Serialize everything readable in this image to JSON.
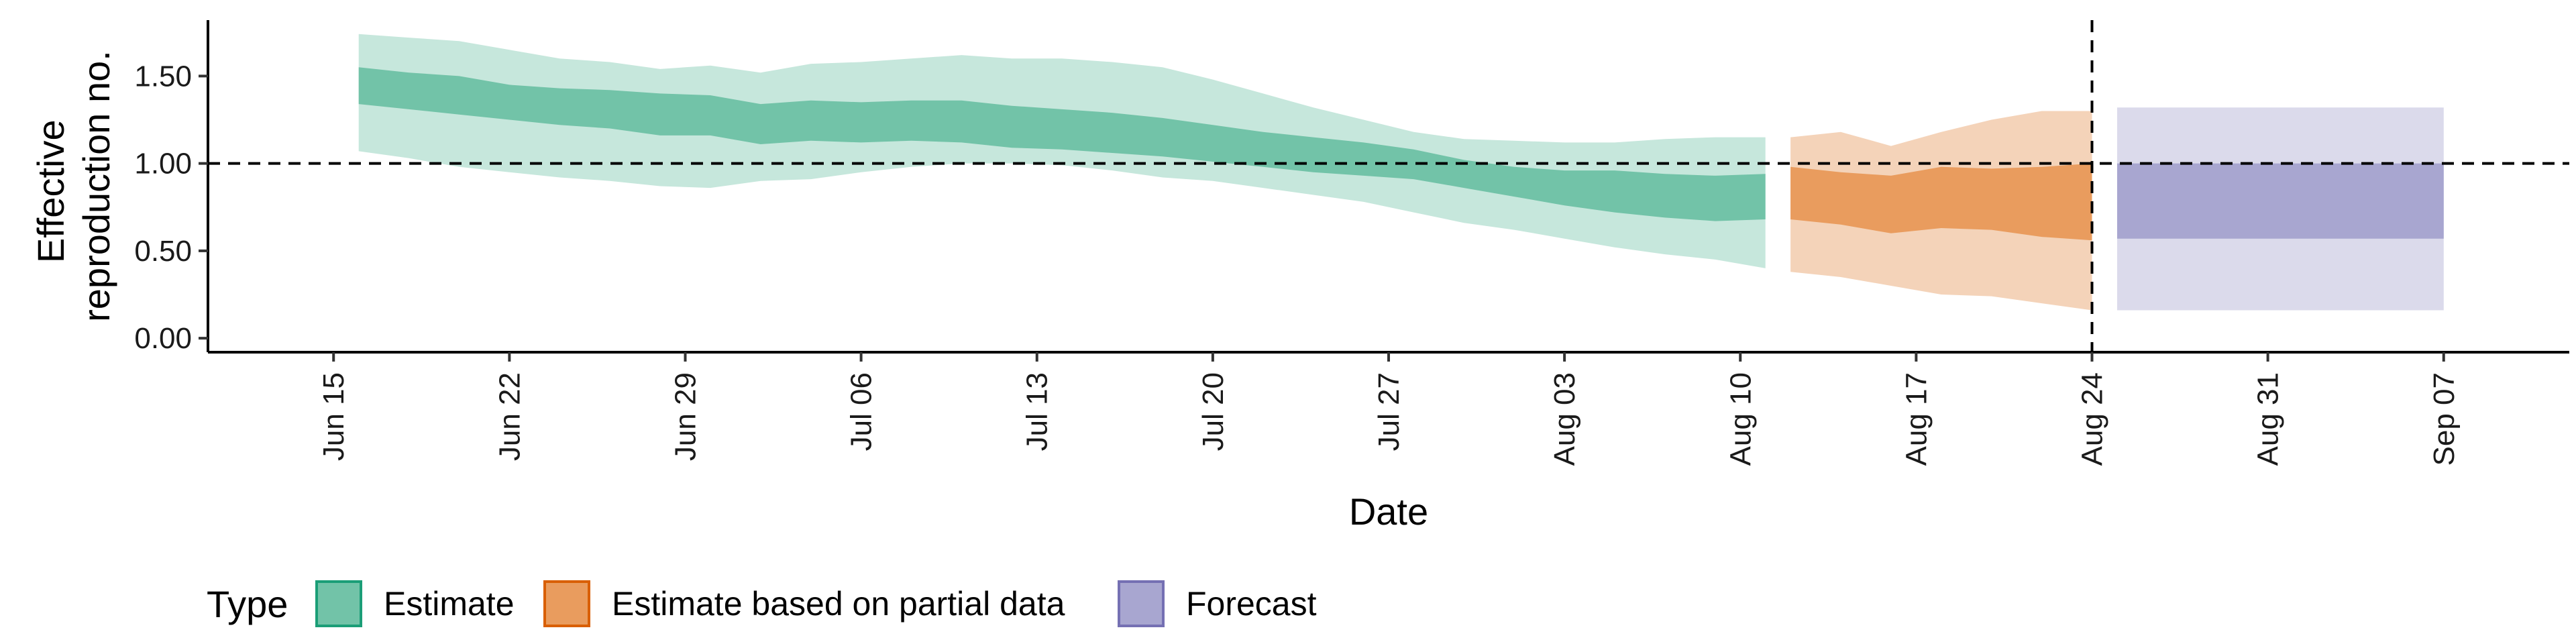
{
  "chart_data": {
    "type": "area",
    "title": "",
    "xlabel": "Date",
    "ylabel": "Effective reproduction no.",
    "ylabel_lines": [
      "Effective",
      "reproduction no."
    ],
    "ylim": [
      -0.08,
      1.82
    ],
    "yticks": [
      0.0,
      0.5,
      1.0,
      1.5
    ],
    "ytick_labels": [
      "0.00",
      "0.50",
      "1.00",
      "1.50"
    ],
    "xlim": [
      "2020-06-10",
      "2020-09-12"
    ],
    "xticks": [
      "2020-06-15",
      "2020-06-22",
      "2020-06-29",
      "2020-07-06",
      "2020-07-13",
      "2020-07-20",
      "2020-07-27",
      "2020-08-03",
      "2020-08-10",
      "2020-08-17",
      "2020-08-24",
      "2020-08-31",
      "2020-09-07"
    ],
    "xtick_labels": [
      "Jun 15",
      "Jun 22",
      "Jun 29",
      "Jul 06",
      "Jul 13",
      "Jul 20",
      "Jul 27",
      "Aug 03",
      "Aug 10",
      "Aug 17",
      "Aug 24",
      "Aug 31",
      "Sep 07"
    ],
    "hline": 1.0,
    "vline": "2020-08-24",
    "legend": {
      "title": "Type",
      "position": "bottom",
      "items": [
        {
          "label": "Estimate",
          "fill": "#72c3a8",
          "border": "#1b9e77"
        },
        {
          "label": "Estimate based on partial data",
          "fill": "#e99c5e",
          "border": "#d95f02"
        },
        {
          "label": "Forecast",
          "fill": "#a8a6d0",
          "border": "#7570b3"
        }
      ]
    },
    "series": [
      {
        "name": "Estimate",
        "color": "#1b9e77",
        "inner_fill": "#72c3a8",
        "outer_fill": "#c6e7dc",
        "x": [
          "2020-06-16",
          "2020-06-18",
          "2020-06-20",
          "2020-06-22",
          "2020-06-24",
          "2020-06-26",
          "2020-06-28",
          "2020-06-30",
          "2020-07-02",
          "2020-07-04",
          "2020-07-06",
          "2020-07-08",
          "2020-07-10",
          "2020-07-12",
          "2020-07-14",
          "2020-07-16",
          "2020-07-18",
          "2020-07-20",
          "2020-07-22",
          "2020-07-24",
          "2020-07-26",
          "2020-07-28",
          "2020-07-30",
          "2020-08-01",
          "2020-08-03",
          "2020-08-05",
          "2020-08-07",
          "2020-08-09",
          "2020-08-11"
        ],
        "outer_upper": [
          1.74,
          1.72,
          1.7,
          1.65,
          1.6,
          1.58,
          1.54,
          1.56,
          1.52,
          1.57,
          1.58,
          1.6,
          1.62,
          1.6,
          1.6,
          1.58,
          1.55,
          1.48,
          1.4,
          1.32,
          1.25,
          1.18,
          1.14,
          1.13,
          1.12,
          1.12,
          1.14,
          1.15,
          1.15
        ],
        "inner_upper": [
          1.55,
          1.52,
          1.5,
          1.45,
          1.43,
          1.42,
          1.4,
          1.39,
          1.34,
          1.36,
          1.35,
          1.36,
          1.36,
          1.33,
          1.31,
          1.29,
          1.26,
          1.22,
          1.18,
          1.15,
          1.12,
          1.08,
          1.02,
          0.98,
          0.96,
          0.96,
          0.94,
          0.93,
          0.94
        ],
        "inner_lower": [
          1.34,
          1.31,
          1.28,
          1.25,
          1.22,
          1.2,
          1.16,
          1.16,
          1.11,
          1.13,
          1.12,
          1.13,
          1.12,
          1.09,
          1.08,
          1.06,
          1.04,
          1.01,
          0.98,
          0.95,
          0.93,
          0.91,
          0.86,
          0.81,
          0.76,
          0.72,
          0.69,
          0.67,
          0.68
        ],
        "outer_lower": [
          1.07,
          1.03,
          0.98,
          0.95,
          0.92,
          0.9,
          0.87,
          0.86,
          0.9,
          0.91,
          0.95,
          0.98,
          1.0,
          1.0,
          0.99,
          0.96,
          0.92,
          0.9,
          0.86,
          0.82,
          0.78,
          0.72,
          0.66,
          0.62,
          0.57,
          0.52,
          0.48,
          0.45,
          0.4
        ]
      },
      {
        "name": "Estimate based on partial data",
        "color": "#d95f02",
        "inner_fill": "#e99c5e",
        "outer_fill": "#f4d3b9",
        "x": [
          "2020-08-12",
          "2020-08-14",
          "2020-08-16",
          "2020-08-18",
          "2020-08-20",
          "2020-08-22",
          "2020-08-24"
        ],
        "outer_upper": [
          1.15,
          1.18,
          1.1,
          1.18,
          1.25,
          1.3,
          1.3
        ],
        "inner_upper": [
          0.98,
          0.95,
          0.93,
          0.98,
          0.97,
          0.98,
          1.0
        ],
        "inner_lower": [
          0.68,
          0.65,
          0.6,
          0.63,
          0.62,
          0.58,
          0.56
        ],
        "outer_lower": [
          0.38,
          0.35,
          0.3,
          0.25,
          0.24,
          0.2,
          0.16
        ]
      },
      {
        "name": "Forecast",
        "color": "#7570b3",
        "inner_fill": "#a8a6d0",
        "outer_fill": "#dbdaeb",
        "x": [
          "2020-08-25",
          "2020-09-07"
        ],
        "outer_upper": [
          1.32,
          1.32
        ],
        "inner_upper": [
          1.0,
          1.0
        ],
        "inner_lower": [
          0.57,
          0.57
        ],
        "outer_lower": [
          0.16,
          0.16
        ]
      }
    ]
  }
}
